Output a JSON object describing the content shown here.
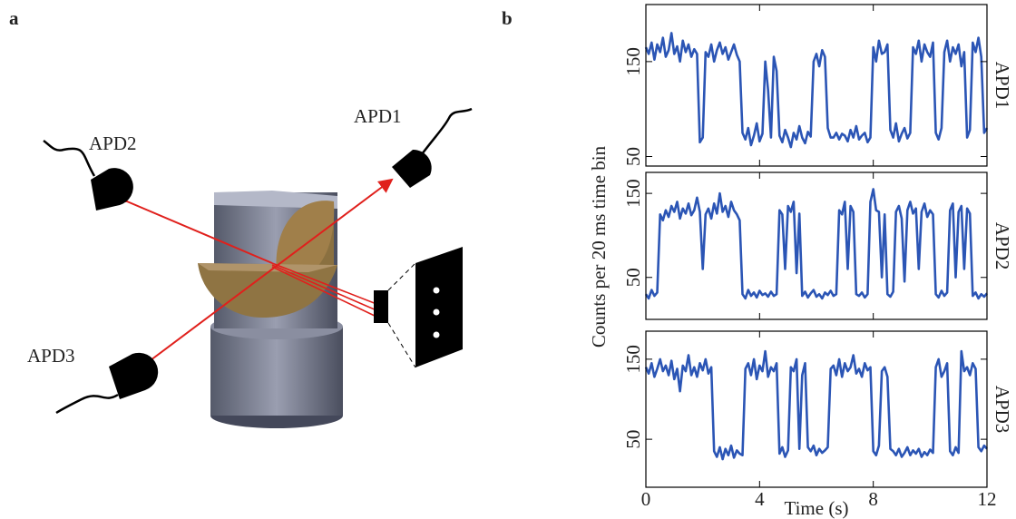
{
  "panel_a": {
    "label": "a",
    "detectors": [
      "APD1",
      "APD2",
      "APD3"
    ]
  },
  "panel_b": {
    "label": "b"
  },
  "chart_data": [
    {
      "type": "line",
      "side_label": "APD1",
      "xlim": [
        0,
        12
      ],
      "ylim": [
        40,
        210
      ],
      "yticks": [
        50,
        150
      ],
      "x": [
        0,
        0.1,
        0.2,
        0.3,
        0.4,
        0.5,
        0.6,
        0.7,
        0.8,
        0.9,
        1,
        1.1,
        1.2,
        1.3,
        1.4,
        1.5,
        1.6,
        1.7,
        1.8,
        1.9,
        2,
        2.1,
        2.2,
        2.3,
        2.4,
        2.5,
        2.6,
        2.7,
        2.8,
        2.9,
        3,
        3.1,
        3.2,
        3.3,
        3.4,
        3.5,
        3.6,
        3.7,
        3.8,
        3.9,
        4,
        4.1,
        4.2,
        4.3,
        4.4,
        4.5,
        4.6,
        4.7,
        4.8,
        4.9,
        5,
        5.1,
        5.2,
        5.3,
        5.4,
        5.5,
        5.6,
        5.7,
        5.8,
        5.9,
        6,
        6.1,
        6.2,
        6.3,
        6.4,
        6.5,
        6.6,
        6.7,
        6.8,
        6.9,
        7,
        7.1,
        7.2,
        7.3,
        7.4,
        7.5,
        7.6,
        7.7,
        7.8,
        7.9,
        8,
        8.1,
        8.2,
        8.3,
        8.4,
        8.5,
        8.6,
        8.7,
        8.8,
        8.9,
        9,
        9.1,
        9.2,
        9.3,
        9.4,
        9.5,
        9.6,
        9.7,
        9.8,
        9.9,
        10,
        10.1,
        10.2,
        10.3,
        10.4,
        10.5,
        10.6,
        10.7,
        10.8,
        10.9,
        11,
        11.1,
        11.2,
        11.3,
        11.4,
        11.5,
        11.6,
        11.7,
        11.8,
        11.9,
        12
      ],
      "series": [
        {
          "color": "#2b55b5",
          "values": [
            165,
            158,
            170,
            152,
            168,
            160,
            175,
            155,
            162,
            180,
            158,
            166,
            150,
            172,
            160,
            168,
            155,
            163,
            158,
            65,
            70,
            160,
            155,
            168,
            150,
            162,
            170,
            158,
            165,
            152,
            160,
            168,
            157,
            150,
            75,
            68,
            80,
            62,
            72,
            85,
            66,
            74,
            150,
            120,
            70,
            155,
            140,
            72,
            65,
            78,
            70,
            60,
            75,
            68,
            82,
            70,
            64,
            76,
            71,
            150,
            158,
            145,
            162,
            155,
            80,
            70,
            70,
            75,
            68,
            74,
            72,
            66,
            78,
            70,
            82,
            68,
            72,
            75,
            65,
            70,
            165,
            150,
            172,
            158,
            160,
            168,
            78,
            70,
            85,
            66,
            74,
            80,
            69,
            75,
            165,
            158,
            172,
            150,
            168,
            160,
            155,
            170,
            75,
            68,
            80,
            160,
            172,
            150,
            165,
            158,
            168,
            145,
            160,
            70,
            78,
            170,
            160,
            175,
            155,
            75,
            80
          ]
        }
      ]
    },
    {
      "type": "line",
      "side_label": "APD2",
      "ylabel": "Counts per 20 ms time bin",
      "xlim": [
        0,
        12
      ],
      "ylim": [
        0,
        175
      ],
      "yticks": [
        50,
        150
      ],
      "x": [
        0,
        0.1,
        0.2,
        0.3,
        0.4,
        0.5,
        0.6,
        0.7,
        0.8,
        0.9,
        1,
        1.1,
        1.2,
        1.3,
        1.4,
        1.5,
        1.6,
        1.7,
        1.8,
        1.9,
        2,
        2.1,
        2.2,
        2.3,
        2.4,
        2.5,
        2.6,
        2.7,
        2.8,
        2.9,
        3,
        3.1,
        3.2,
        3.3,
        3.4,
        3.5,
        3.6,
        3.7,
        3.8,
        3.9,
        4,
        4.1,
        4.2,
        4.3,
        4.4,
        4.5,
        4.6,
        4.7,
        4.8,
        4.9,
        5,
        5.1,
        5.2,
        5.3,
        5.4,
        5.5,
        5.6,
        5.7,
        5.8,
        5.9,
        6,
        6.1,
        6.2,
        6.3,
        6.4,
        6.5,
        6.6,
        6.7,
        6.8,
        6.9,
        7,
        7.1,
        7.2,
        7.3,
        7.4,
        7.5,
        7.6,
        7.7,
        7.8,
        7.9,
        8,
        8.1,
        8.2,
        8.3,
        8.4,
        8.5,
        8.6,
        8.7,
        8.8,
        8.9,
        9,
        9.1,
        9.2,
        9.3,
        9.4,
        9.5,
        9.6,
        9.7,
        9.8,
        9.9,
        10,
        10.1,
        10.2,
        10.3,
        10.4,
        10.5,
        10.6,
        10.7,
        10.8,
        10.9,
        11,
        11.1,
        11.2,
        11.3,
        11.4,
        11.5,
        11.6,
        11.7,
        11.8,
        11.9,
        12
      ],
      "series": [
        {
          "color": "#2b55b5",
          "values": [
            30,
            25,
            35,
            28,
            32,
            125,
            118,
            130,
            122,
            135,
            128,
            140,
            120,
            132,
            126,
            138,
            124,
            130,
            145,
            128,
            60,
            125,
            132,
            120,
            138,
            126,
            150,
            128,
            135,
            122,
            140,
            130,
            125,
            118,
            30,
            25,
            35,
            28,
            32,
            26,
            34,
            29,
            31,
            27,
            33,
            28,
            30,
            130,
            125,
            60,
            135,
            128,
            140,
            55,
            126,
            28,
            33,
            26,
            31,
            35,
            27,
            30,
            25,
            32,
            29,
            34,
            28,
            30,
            130,
            125,
            140,
            60,
            135,
            128,
            30,
            28,
            32,
            26,
            30,
            140,
            155,
            130,
            128,
            50,
            125,
            30,
            27,
            33,
            128,
            135,
            120,
            45,
            130,
            140,
            126,
            132,
            60,
            128,
            138,
            122,
            130,
            125,
            30,
            26,
            34,
            28,
            32,
            130,
            138,
            50,
            128,
            135,
            60,
            132,
            126,
            28,
            32,
            25,
            30,
            27,
            31
          ]
        }
      ]
    },
    {
      "type": "line",
      "side_label": "APD3",
      "xlabel": "Time (s)",
      "xlim": [
        0,
        12
      ],
      "xticks": [
        0,
        4,
        8,
        12
      ],
      "ylim": [
        -10,
        185
      ],
      "yticks": [
        50,
        150
      ],
      "x": [
        0,
        0.1,
        0.2,
        0.3,
        0.4,
        0.5,
        0.6,
        0.7,
        0.8,
        0.9,
        1,
        1.1,
        1.2,
        1.3,
        1.4,
        1.5,
        1.6,
        1.7,
        1.8,
        1.9,
        2,
        2.1,
        2.2,
        2.3,
        2.4,
        2.5,
        2.6,
        2.7,
        2.8,
        2.9,
        3,
        3.1,
        3.2,
        3.3,
        3.4,
        3.5,
        3.6,
        3.7,
        3.8,
        3.9,
        4,
        4.1,
        4.2,
        4.3,
        4.4,
        4.5,
        4.6,
        4.7,
        4.8,
        4.9,
        5,
        5.1,
        5.2,
        5.3,
        5.4,
        5.5,
        5.6,
        5.7,
        5.8,
        5.9,
        6,
        6.1,
        6.2,
        6.3,
        6.4,
        6.5,
        6.6,
        6.7,
        6.8,
        6.9,
        7,
        7.1,
        7.2,
        7.3,
        7.4,
        7.5,
        7.6,
        7.7,
        7.8,
        7.9,
        8,
        8.1,
        8.2,
        8.3,
        8.4,
        8.5,
        8.6,
        8.7,
        8.8,
        8.9,
        9,
        9.1,
        9.2,
        9.3,
        9.4,
        9.5,
        9.6,
        9.7,
        9.8,
        9.9,
        10,
        10.1,
        10.2,
        10.3,
        10.4,
        10.5,
        10.6,
        10.7,
        10.8,
        10.9,
        11,
        11.1,
        11.2,
        11.3,
        11.4,
        11.5,
        11.6,
        11.7,
        11.8,
        11.9,
        12
      ],
      "series": [
        {
          "color": "#2b55b5",
          "values": [
            140,
            132,
            145,
            128,
            138,
            150,
            135,
            142,
            130,
            148,
            125,
            138,
            110,
            142,
            135,
            155,
            130,
            140,
            128,
            145,
            136,
            150,
            132,
            140,
            35,
            28,
            40,
            25,
            38,
            30,
            42,
            27,
            36,
            32,
            30,
            138,
            145,
            130,
            150,
            125,
            142,
            135,
            160,
            128,
            140,
            135,
            145,
            32,
            40,
            28,
            36,
            140,
            135,
            150,
            38,
            130,
            145,
            40,
            35,
            42,
            30,
            38,
            33,
            36,
            40,
            138,
            142,
            130,
            150,
            128,
            145,
            135,
            140,
            155,
            132,
            138,
            128,
            145,
            136,
            140,
            35,
            30,
            42,
            135,
            140,
            128,
            38,
            35,
            30,
            38,
            28,
            33,
            40,
            30,
            36,
            32,
            38,
            28,
            34,
            30,
            37,
            33,
            140,
            150,
            128,
            135,
            145,
            35,
            30,
            40,
            33,
            160,
            135,
            140,
            130,
            145,
            138,
            40,
            35,
            42,
            38
          ]
        }
      ]
    }
  ]
}
